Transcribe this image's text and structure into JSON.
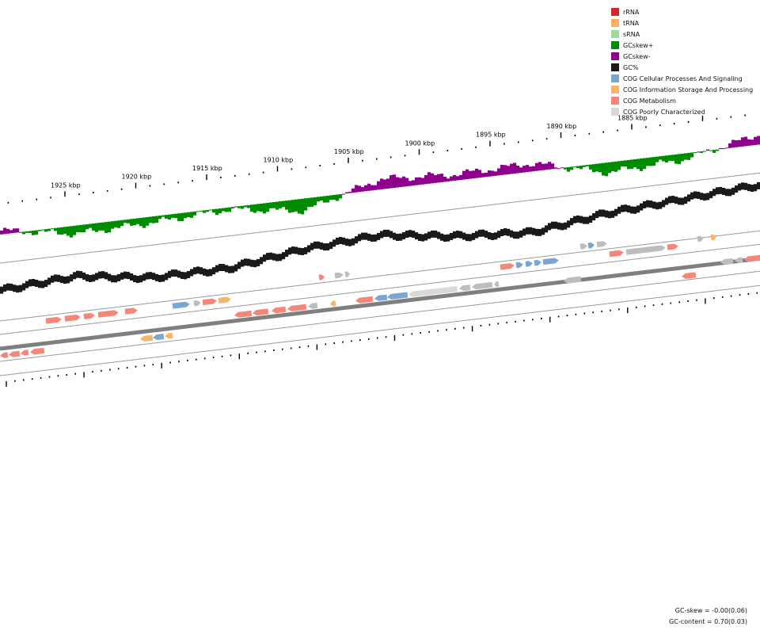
{
  "legend": [
    {
      "label": "rRNA",
      "color": "#d62728"
    },
    {
      "label": "tRNA",
      "color": "#fdae61"
    },
    {
      "label": "sRNA",
      "color": "#a1d99b"
    },
    {
      "label": "GCskew+",
      "color": "#008c00"
    },
    {
      "label": "GCskew-",
      "color": "#8f008f"
    },
    {
      "label": "GC%",
      "color": "#1a1a1a"
    },
    {
      "label": "COG Cellular Processes And Signaling",
      "color": "#7aa6cf"
    },
    {
      "label": "COG Information Storage And Processing",
      "color": "#f9b469"
    },
    {
      "label": "COG Metabolism",
      "color": "#f4877a"
    },
    {
      "label": "COG Poorly Characterized",
      "color": "#d9d9d9"
    }
  ],
  "colors": {
    "backbone": "#7f7f7f",
    "unassigned_gene": "#bdbdbd",
    "track_line": "#9a9a9a"
  },
  "ruler": {
    "labels": [
      "1925 kbp",
      "1920 kbp",
      "1915 kbp",
      "1910 kbp",
      "1905 kbp",
      "1900 kbp",
      "1895 kbp",
      "1890 kbp",
      "1885 kbp"
    ]
  },
  "chart_data": {
    "type": "circular genome map (zoomed arc)",
    "positions_kbp": [
      1925,
      1920,
      1915,
      1910,
      1905,
      1900,
      1895,
      1890,
      1885
    ],
    "gc_skew": [
      0.02,
      -0.04,
      -0.03,
      -0.01,
      -0.06,
      0.05,
      0.03,
      0.04,
      -0.05,
      -0.03,
      0.05
    ],
    "gc_content": [
      0.7,
      0.71,
      0.69,
      0.69,
      0.71,
      0.72,
      0.7,
      0.69,
      0.71,
      0.72,
      0.73
    ],
    "forward_genes": [
      {
        "cog": "Metabolism"
      },
      {
        "cog": "Metabolism"
      },
      {
        "cog": "Metabolism"
      },
      {
        "cog": "Metabolism"
      },
      {
        "cog": "Metabolism"
      },
      {
        "cog": "Cellular Processes And Signaling"
      },
      {
        "cog": "unassigned"
      },
      {
        "cog": "Metabolism"
      },
      {
        "cog": "Information Storage And Processing"
      },
      {
        "cog": "Metabolism"
      },
      {
        "cog": "unassigned"
      },
      {
        "cog": "unassigned"
      },
      {
        "cog": "Metabolism"
      },
      {
        "cog": "Cellular Processes And Signaling"
      },
      {
        "cog": "Cellular Processes And Signaling"
      },
      {
        "cog": "Cellular Processes And Signaling"
      },
      {
        "cog": "Cellular Processes And Signaling"
      },
      {
        "cog": "unassigned"
      },
      {
        "cog": "Cellular Processes And Signaling"
      },
      {
        "cog": "unassigned"
      },
      {
        "cog": "Metabolism"
      },
      {
        "cog": "unassigned"
      },
      {
        "cog": "Metabolism"
      },
      {
        "cog": "unassigned"
      },
      {
        "cog": "Information Storage And Processing"
      }
    ],
    "reverse_genes": [
      {
        "cog": "Metabolism"
      },
      {
        "cog": "Metabolism"
      },
      {
        "cog": "Metabolism"
      },
      {
        "cog": "Metabolism"
      },
      {
        "cog": "Information Storage And Processing"
      },
      {
        "cog": "Cellular Processes And Signaling"
      },
      {
        "cog": "Information Storage And Processing"
      },
      {
        "cog": "Metabolism"
      },
      {
        "cog": "Metabolism"
      },
      {
        "cog": "Metabolism"
      },
      {
        "cog": "Metabolism"
      },
      {
        "cog": "unassigned"
      },
      {
        "cog": "Information Storage And Processing"
      },
      {
        "cog": "Metabolism"
      },
      {
        "cog": "Cellular Processes And Signaling"
      },
      {
        "cog": "Cellular Processes And Signaling"
      },
      {
        "cog": "Poorly Characterized"
      },
      {
        "cog": "unassigned"
      },
      {
        "cog": "unassigned"
      },
      {
        "cog": "unassigned"
      },
      {
        "cog": "unassigned"
      },
      {
        "cog": "Metabolism"
      },
      {
        "cog": "unassigned"
      },
      {
        "cog": "unassigned"
      },
      {
        "cog": "Metabolism"
      }
    ]
  },
  "stats": {
    "gc_skew": "GC-skew = -0.00(0.06)",
    "gc_content": "GC-content = 0.70(0.03)"
  }
}
